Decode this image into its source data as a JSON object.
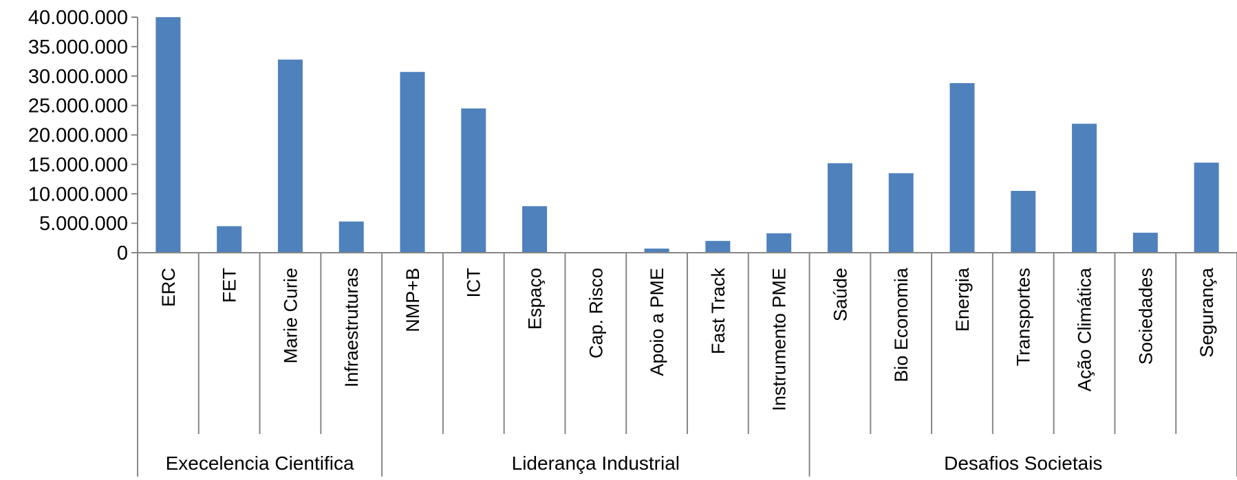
{
  "chart_data": {
    "type": "bar",
    "title": "",
    "xlabel": "",
    "ylabel": "",
    "ylim": [
      0,
      40000000
    ],
    "y_tick_values": [
      0,
      5000000,
      10000000,
      15000000,
      20000000,
      25000000,
      30000000,
      35000000,
      40000000
    ],
    "y_tick_labels": [
      "0",
      "5.000.000",
      "10.000.000",
      "15.000.000",
      "20.000.000",
      "25.000.000",
      "30.000.000",
      "35.000.000",
      "40.000.000"
    ],
    "categories": [
      "ERC",
      "FET",
      "Marie Curie",
      "Infraestruturas",
      "NMP+B",
      "ICT",
      "Espaço",
      "Cap. Risco",
      "Apoio a PME",
      "Fast Track",
      "Instrumento PME",
      "Saúde",
      "Bio Economia",
      "Energia",
      "Transportes",
      "Ação Climática",
      "Sociedades",
      "Segurança"
    ],
    "values": [
      40000000,
      4500000,
      32800000,
      5300000,
      30700000,
      24500000,
      7900000,
      0,
      700000,
      2000000,
      3300000,
      15200000,
      13500000,
      28800000,
      10500000,
      21900000,
      3400000,
      15300000
    ],
    "groups": [
      {
        "label": "Execelencia Cientifica",
        "count": 4
      },
      {
        "label": "Liderança Industrial",
        "count": 7
      },
      {
        "label": "Desafios Societais",
        "count": 7
      }
    ],
    "grid": false,
    "legend": "none",
    "bar_color": "#4f81bd",
    "axis_color": "#868686"
  }
}
